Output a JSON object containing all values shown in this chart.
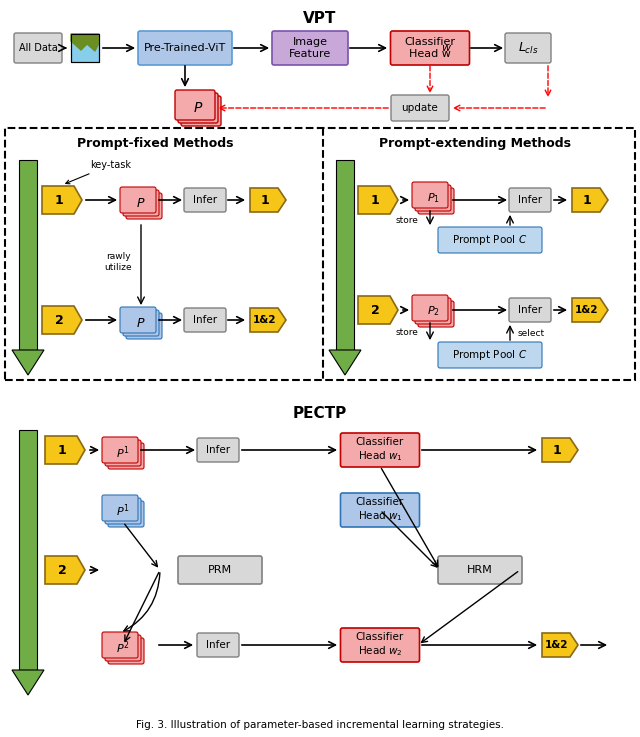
{
  "title_vpt": "VPT",
  "title_methods": "",
  "title_pectp": "PECTP",
  "fig_caption": "Fig. 3. Illustration of parameter-based incremental learning strategies.",
  "colors": {
    "blue_box": "#AEC6E8",
    "purple_box": "#C8A8D8",
    "pink_box": "#F4AAAA",
    "gray_box": "#D8D8D8",
    "yellow_box": "#F5C842",
    "light_blue_pool": "#BDD7EE",
    "green_arrow": "#70AD47",
    "background": "#FFFFFF"
  }
}
